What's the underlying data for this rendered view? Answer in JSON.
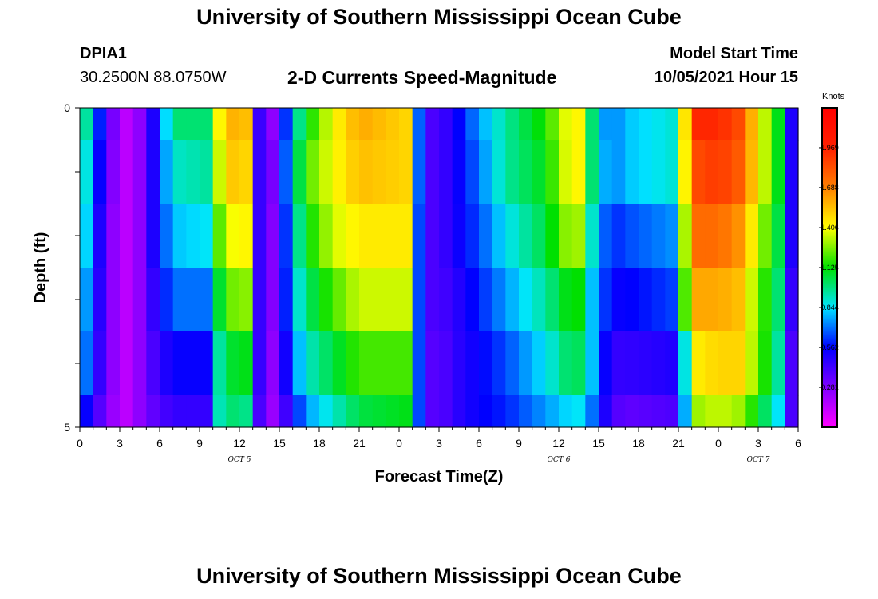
{
  "header": {
    "title": "University of Southern Mississippi Ocean Cube",
    "station": "DPIA1",
    "coords": "30.2500N  88.0750W",
    "subtitle": "2-D Currents Speed-Magnitude",
    "model_start_label": "Model Start Time",
    "model_start_value": "10/05/2021 Hour 15"
  },
  "footer": {
    "title": "University of Southern Mississippi Ocean Cube"
  },
  "chart_data": {
    "type": "heatmap",
    "title": "2-D Currents Speed-Magnitude",
    "xlabel": "Forecast Time(Z)",
    "ylabel": "Depth (ft)",
    "xlim": [
      0,
      54
    ],
    "ylim": [
      0,
      5
    ],
    "x_ticks": [
      0,
      3,
      6,
      9,
      12,
      15,
      18,
      21,
      24,
      27,
      30,
      33,
      36,
      39,
      42,
      45,
      48,
      51,
      54
    ],
    "x_tick_labels": [
      "0",
      "3",
      "6",
      "9",
      "12",
      "15",
      "18",
      "21",
      "0",
      "3",
      "6",
      "9",
      "12",
      "15",
      "18",
      "21",
      "0",
      "3",
      "6"
    ],
    "y_ticks": [
      0,
      5
    ],
    "y_tick_labels": [
      "0",
      "5"
    ],
    "date_labels": [
      {
        "x": 12,
        "text": "OCT 5"
      },
      {
        "x": 36,
        "text": "OCT 6"
      },
      {
        "x": 51,
        "text": "OCT 7"
      }
    ],
    "depth_layers": [
      0,
      1,
      2,
      3,
      4,
      5
    ],
    "time_keyframes": [
      0,
      1,
      2,
      3,
      4.5,
      5.5,
      7,
      9.5,
      10,
      11,
      12,
      13,
      13.4,
      14,
      15,
      16,
      17,
      19,
      21,
      24.5,
      25.2,
      26,
      27,
      28,
      30,
      32,
      35,
      37,
      38,
      38.5,
      39,
      40,
      41,
      45,
      45.8,
      46.5,
      48,
      49.5,
      51,
      52.5,
      53.5,
      54
    ],
    "layer_keyframes": [
      [
        1.2,
        0.7,
        0.5,
        0.1,
        0.25,
        0.5,
        1.0,
        1.0,
        1.3,
        1.55,
        1.6,
        1.5,
        0.5,
        0.1,
        0.4,
        0.85,
        1.1,
        1.4,
        1.6,
        1.5,
        0.85,
        0.4,
        0.4,
        0.5,
        0.75,
        0.95,
        1.15,
        1.45,
        1.4,
        1.0,
        0.8,
        0.7,
        0.8,
        0.9,
        1.8,
        1.95,
        1.95,
        1.85,
        1.45,
        1.1,
        0.5,
        0.1
      ],
      [
        1.1,
        0.65,
        0.45,
        0.1,
        0.25,
        0.5,
        0.9,
        0.95,
        1.2,
        1.5,
        1.55,
        1.45,
        0.5,
        0.15,
        0.45,
        0.9,
        1.2,
        1.4,
        1.55,
        1.5,
        0.85,
        0.4,
        0.4,
        0.5,
        0.7,
        0.95,
        1.1,
        1.45,
        1.4,
        1.0,
        0.85,
        0.7,
        0.8,
        0.9,
        1.75,
        1.85,
        1.9,
        1.8,
        1.45,
        1.1,
        0.5,
        0.1
      ],
      [
        1.05,
        0.6,
        0.4,
        0.1,
        0.25,
        0.5,
        0.8,
        0.85,
        1.1,
        1.35,
        1.45,
        1.4,
        0.5,
        0.15,
        0.4,
        0.85,
        1.1,
        1.35,
        1.45,
        1.45,
        0.8,
        0.4,
        0.4,
        0.5,
        0.65,
        0.85,
        1.05,
        1.35,
        1.25,
        0.9,
        0.75,
        0.6,
        0.65,
        0.75,
        1.65,
        1.75,
        1.75,
        1.65,
        1.35,
        1.05,
        0.5,
        0.1
      ],
      [
        0.95,
        0.55,
        0.4,
        0.1,
        0.25,
        0.45,
        0.7,
        0.7,
        0.95,
        1.2,
        1.3,
        1.25,
        0.5,
        0.15,
        0.4,
        0.8,
        1.0,
        1.2,
        1.35,
        1.35,
        0.8,
        0.4,
        0.4,
        0.45,
        0.6,
        0.75,
        0.95,
        1.15,
        1.1,
        0.8,
        0.7,
        0.55,
        0.55,
        0.65,
        1.55,
        1.6,
        1.6,
        1.55,
        1.25,
        1.0,
        0.45,
        0.1
      ],
      [
        0.9,
        0.5,
        0.4,
        0.1,
        0.25,
        0.4,
        0.55,
        0.55,
        0.85,
        1.05,
        1.1,
        1.1,
        0.5,
        0.15,
        0.35,
        0.7,
        0.9,
        1.05,
        1.2,
        1.2,
        0.8,
        0.4,
        0.35,
        0.45,
        0.55,
        0.65,
        0.85,
        1.05,
        1.0,
        0.8,
        0.65,
        0.45,
        0.45,
        0.5,
        1.1,
        1.45,
        1.5,
        1.5,
        1.25,
        0.95,
        0.4,
        0.1
      ],
      [
        0.7,
        0.4,
        0.35,
        0.1,
        0.25,
        0.35,
        0.45,
        0.45,
        0.85,
        1.0,
        1.0,
        0.95,
        0.45,
        0.15,
        0.3,
        0.55,
        0.75,
        0.9,
        1.05,
        1.1,
        0.8,
        0.4,
        0.35,
        0.45,
        0.55,
        0.6,
        0.75,
        0.85,
        0.85,
        0.7,
        0.6,
        0.4,
        0.35,
        0.4,
        1.0,
        1.3,
        1.35,
        1.3,
        1.1,
        0.85,
        0.4,
        0.1
      ]
    ],
    "colorbar": {
      "label": "Knots",
      "min": 0,
      "max": 2.25,
      "ticks": [
        "1.969",
        "1.688",
        "1.406",
        "1.125",
        "0.844",
        "0.562",
        "0.281"
      ],
      "tick_values": [
        1.969,
        1.688,
        1.406,
        1.125,
        0.844,
        0.562,
        0.281
      ]
    }
  }
}
